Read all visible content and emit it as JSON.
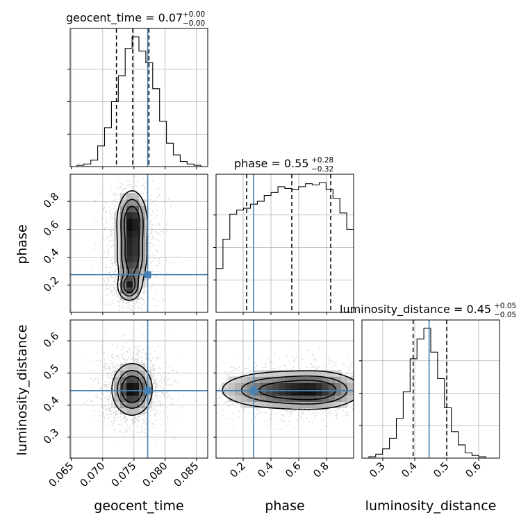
{
  "chart_data": {
    "type": "corner",
    "parameters": [
      "geocent_time",
      "phase",
      "luminosity_distance"
    ],
    "truths": {
      "geocent_time": 0.0772,
      "phase": 0.275,
      "luminosity_distance": 0.445
    },
    "truth_color": "#4682b4",
    "grid": true,
    "titles": [
      {
        "param": "geocent_time",
        "main": "geocent_time = 0.07",
        "plus": "+0.00",
        "minus": "−0.00"
      },
      {
        "param": "phase",
        "main": "phase = 0.55",
        "plus": "+0.28",
        "minus": "−0.32"
      },
      {
        "param": "luminosity_distance",
        "main": "luminosity_distance = 0.45",
        "plus": "+0.05",
        "minus": "−0.05"
      }
    ],
    "axis_labels": {
      "geocent_time": "geocent_time",
      "phase": "phase",
      "luminosity_distance": "luminosity_distance"
    },
    "ranges": {
      "geocent_time": [
        0.0648,
        0.0868
      ],
      "phase": [
        0.005,
        0.995
      ],
      "luminosity_distance": [
        0.235,
        0.665
      ]
    },
    "ticks": {
      "geocent_time": {
        "values": [
          0.065,
          0.07,
          0.075,
          0.08,
          0.085
        ],
        "labels": [
          "0.065",
          "0.070",
          "0.075",
          "0.080",
          "0.085"
        ]
      },
      "phase": {
        "values": [
          0.2,
          0.4,
          0.6,
          0.8
        ],
        "labels": [
          "0.2",
          "0.4",
          "0.6",
          "0.8"
        ]
      },
      "luminosity_distance": {
        "values": [
          0.3,
          0.4,
          0.5,
          0.6
        ],
        "labels": [
          "0.3",
          "0.4",
          "0.5",
          "0.6"
        ]
      }
    },
    "quantiles": {
      "geocent_time": [
        0.0722,
        0.0748,
        0.0774
      ],
      "phase": [
        0.225,
        0.55,
        0.83
      ],
      "luminosity_distance": [
        0.395,
        0.445,
        0.5
      ]
    },
    "histograms": {
      "geocent_time": {
        "edges": [
          0.0648,
          0.0659,
          0.067,
          0.0681,
          0.0692,
          0.0703,
          0.0714,
          0.0725,
          0.0736,
          0.0747,
          0.0758,
          0.0769,
          0.078,
          0.0791,
          0.0802,
          0.0813,
          0.0824,
          0.0835,
          0.0846,
          0.0857,
          0.0868
        ],
        "counts": [
          0,
          2,
          4,
          10,
          32,
          60,
          100,
          140,
          182,
          200,
          178,
          160,
          120,
          70,
          36,
          18,
          8,
          4,
          2,
          0
        ]
      },
      "phase": {
        "edges": [
          0.005,
          0.0545,
          0.104,
          0.1535,
          0.203,
          0.2525,
          0.302,
          0.3515,
          0.401,
          0.4505,
          0.5,
          0.5495,
          0.599,
          0.6485,
          0.698,
          0.7475,
          0.797,
          0.8465,
          0.896,
          0.9455,
          0.995
        ],
        "counts": [
          75,
          125,
          168,
          175,
          178,
          185,
          190,
          200,
          205,
          215,
          212,
          210,
          215,
          220,
          218,
          222,
          210,
          195,
          170,
          142
        ]
      },
      "luminosity_distance": {
        "edges": [
          0.235,
          0.2565,
          0.278,
          0.2995,
          0.321,
          0.3425,
          0.364,
          0.3855,
          0.407,
          0.4285,
          0.45,
          0.4715,
          0.493,
          0.5145,
          0.536,
          0.5575,
          0.579,
          0.6005,
          0.622,
          0.6435,
          0.665
        ],
        "counts": [
          0,
          2,
          6,
          14,
          30,
          60,
          100,
          150,
          180,
          196,
          160,
          120,
          76,
          40,
          20,
          8,
          4,
          2,
          0,
          0
        ]
      }
    },
    "joint": [
      {
        "x": "geocent_time",
        "y": "phase",
        "peaks": [
          {
            "x": 0.0747,
            "y": 0.66,
            "sx": 0.0012,
            "sy": 0.11,
            "w": 1.0
          },
          {
            "x": 0.0747,
            "y": 0.4,
            "sx": 0.0012,
            "sy": 0.12,
            "w": 0.9
          },
          {
            "x": 0.0742,
            "y": 0.19,
            "sx": 0.0009,
            "sy": 0.05,
            "w": 0.8
          }
        ]
      },
      {
        "x": "geocent_time",
        "y": "luminosity_distance",
        "peaks": [
          {
            "x": 0.0747,
            "y": 0.449,
            "sx": 0.0016,
            "sy": 0.04,
            "w": 1.0
          }
        ]
      },
      {
        "x": "phase",
        "y": "luminosity_distance",
        "peaks": [
          {
            "x": 0.45,
            "y": 0.447,
            "sx": 0.22,
            "sy": 0.03,
            "w": 1.0
          },
          {
            "x": 0.75,
            "y": 0.447,
            "sx": 0.16,
            "sy": 0.03,
            "w": 0.9
          }
        ]
      }
    ]
  }
}
